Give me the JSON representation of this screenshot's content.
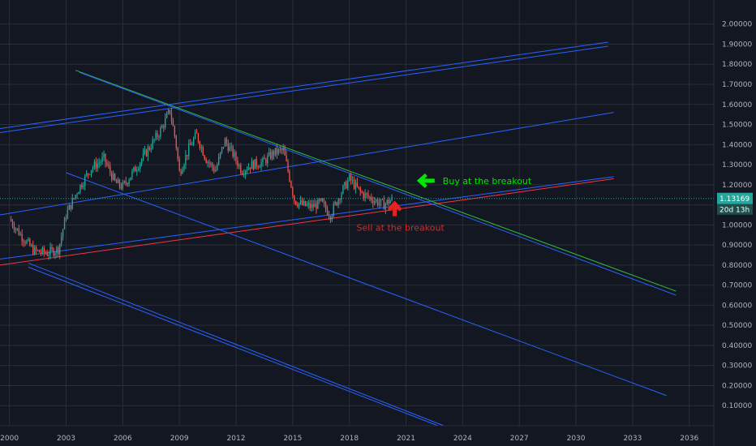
{
  "chart_data": {
    "type": "candlestick",
    "title": "",
    "xlabel": "",
    "ylabel": "",
    "xlim": [
      1999.5,
      2037.3
    ],
    "ylim": [
      0.0,
      2.12
    ],
    "y_ticks": [
      "0.10000",
      "0.20000",
      "0.30000",
      "0.40000",
      "0.50000",
      "0.60000",
      "0.70000",
      "0.80000",
      "0.90000",
      "1.00000",
      "1.10000",
      "1.20000",
      "1.30000",
      "1.40000",
      "1.50000",
      "1.60000",
      "1.70000",
      "1.80000",
      "1.90000",
      "2.00000"
    ],
    "x_ticks": [
      "2000",
      "2003",
      "2006",
      "2009",
      "2012",
      "2015",
      "2018",
      "2021",
      "2024",
      "2027",
      "2030",
      "2033",
      "2036"
    ],
    "grid": true,
    "last_price": {
      "value": 1.13169,
      "label": "1.13169",
      "countdown": "20d 13h"
    },
    "price_path": [
      [
        2000.0,
        1.03
      ],
      [
        2000.6,
        0.95
      ],
      [
        2001.3,
        0.87
      ],
      [
        2002.0,
        0.86
      ],
      [
        2002.6,
        0.88
      ],
      [
        2003.0,
        1.05
      ],
      [
        2003.6,
        1.17
      ],
      [
        2004.3,
        1.28
      ],
      [
        2005.0,
        1.33
      ],
      [
        2005.6,
        1.21
      ],
      [
        2006.0,
        1.19
      ],
      [
        2006.6,
        1.27
      ],
      [
        2007.3,
        1.37
      ],
      [
        2008.0,
        1.47
      ],
      [
        2008.5,
        1.57
      ],
      [
        2008.8,
        1.42
      ],
      [
        2009.0,
        1.26
      ],
      [
        2009.5,
        1.38
      ],
      [
        2009.9,
        1.45
      ],
      [
        2010.4,
        1.33
      ],
      [
        2010.9,
        1.27
      ],
      [
        2011.4,
        1.42
      ],
      [
        2011.8,
        1.36
      ],
      [
        2012.3,
        1.27
      ],
      [
        2012.8,
        1.3
      ],
      [
        2013.4,
        1.31
      ],
      [
        2014.0,
        1.36
      ],
      [
        2014.5,
        1.37
      ],
      [
        2014.8,
        1.25
      ],
      [
        2015.1,
        1.12
      ],
      [
        2015.5,
        1.1
      ],
      [
        2016.0,
        1.09
      ],
      [
        2016.5,
        1.11
      ],
      [
        2017.0,
        1.05
      ],
      [
        2017.5,
        1.15
      ],
      [
        2018.0,
        1.23
      ],
      [
        2018.6,
        1.16
      ],
      [
        2019.2,
        1.13
      ],
      [
        2019.8,
        1.1
      ],
      [
        2020.3,
        1.13
      ]
    ],
    "lines": [
      {
        "name": "channel-top-1",
        "color": "#2962ff",
        "points": [
          [
            1999.5,
            1.46
          ],
          [
            2031.7,
            1.89
          ]
        ]
      },
      {
        "name": "channel-top-2",
        "color": "#2962ff",
        "points": [
          [
            1999.5,
            1.48
          ],
          [
            2031.7,
            1.91
          ]
        ]
      },
      {
        "name": "mid-upper-channel",
        "color": "#2962ff",
        "points": [
          [
            1999.5,
            1.05
          ],
          [
            2032.0,
            1.56
          ]
        ]
      },
      {
        "name": "lower-support-blue",
        "color": "#2962ff",
        "points": [
          [
            1999.5,
            0.83
          ],
          [
            2032.0,
            1.24
          ]
        ]
      },
      {
        "name": "support-red",
        "color": "#f23645",
        "points": [
          [
            1999.5,
            0.8
          ],
          [
            2032.0,
            1.23
          ]
        ]
      },
      {
        "name": "resistance-green",
        "color": "#2ebd3b",
        "points": [
          [
            2003.5,
            1.77
          ],
          [
            2035.3,
            0.67
          ]
        ]
      },
      {
        "name": "resistance-blue",
        "color": "#2962ff",
        "points": [
          [
            2003.7,
            1.76
          ],
          [
            2035.3,
            0.65
          ]
        ]
      },
      {
        "name": "descending-channel",
        "color": "#2962ff",
        "points": [
          [
            2003.0,
            1.26
          ],
          [
            2034.8,
            0.15
          ]
        ]
      },
      {
        "name": "bottom-channel-1",
        "color": "#2962ff",
        "points": [
          [
            2001.0,
            0.81
          ],
          [
            2023.0,
            0.0
          ]
        ]
      },
      {
        "name": "bottom-channel-2",
        "color": "#2962ff",
        "points": [
          [
            2001.0,
            0.79
          ],
          [
            2022.7,
            0.0
          ]
        ]
      }
    ],
    "annotations": [
      {
        "text": "Buy at the breakout",
        "color": "#00e600",
        "arrow": "left",
        "x": 2022.0,
        "y": 1.22
      },
      {
        "text": "Sell at the breakout",
        "color": "#e52421",
        "arrow": "up",
        "x": 2020.4,
        "y": 1.08
      }
    ]
  },
  "colors": {
    "background": "#131722",
    "grid": "#2a2e39",
    "axis_text": "#b2b5be",
    "bull": "#26a69a",
    "bear": "#ef5350",
    "price_tag": "#26a69a"
  }
}
